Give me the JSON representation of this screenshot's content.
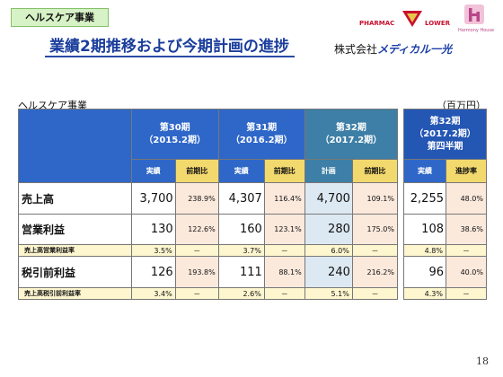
{
  "header": {
    "tag": "ヘルスケア事業",
    "title": "業績2期推移および今期計画の進捗"
  },
  "logos": {
    "pharmac": "PHARMAC",
    "lower": "LOWER",
    "harmony": "Harmony House",
    "company_prefix": "株式会社",
    "company_brand": "メディカル一光"
  },
  "section_label": "ヘルスケア事業",
  "unit_label": "（百万円）",
  "page_number": "18",
  "periods": [
    {
      "name": "第30期",
      "date": "（2015.2期）",
      "col1": "実績",
      "col2": "前期比"
    },
    {
      "name": "第31期",
      "date": "（2016.2期）",
      "col1": "実績",
      "col2": "前期比"
    },
    {
      "name": "第32期",
      "date": "（2017.2期）",
      "col1": "計画",
      "col2": "前期比"
    }
  ],
  "quarter": {
    "name": "第32期",
    "date": "（2017.2期）",
    "sub": "第四半期",
    "col1": "実績",
    "col2": "進捗率"
  },
  "rows": {
    "sales": {
      "label": "売上高",
      "v30": "3,700",
      "r30": "238.9%",
      "v31": "4,307",
      "r31": "116.4%",
      "v32": "4,700",
      "r32": "109.1%",
      "vq": "2,255",
      "rq": "48.0%"
    },
    "op": {
      "label": "営業利益",
      "v30": "130",
      "r30": "122.6%",
      "v31": "160",
      "r31": "123.1%",
      "v32": "280",
      "r32": "175.0%",
      "vq": "108",
      "rq": "38.6%"
    },
    "op_ratio": {
      "label": "売上高営業利益率",
      "v30": "3.5%",
      "d30": "－",
      "v31": "3.7%",
      "d31": "－",
      "v32": "6.0%",
      "d32": "－",
      "vq": "4.8%",
      "dq": "－"
    },
    "pretax": {
      "label": "税引前利益",
      "v30": "126",
      "r30": "193.8%",
      "v31": "111",
      "r31": "88.1%",
      "v32": "240",
      "r32": "216.2%",
      "vq": "96",
      "rq": "40.0%"
    },
    "pretax_ratio": {
      "label": "売上高税引前利益率",
      "v30": "3.4%",
      "d30": "－",
      "v31": "2.6%",
      "d31": "－",
      "v32": "5.1%",
      "d32": "－",
      "vq": "4.3%",
      "dq": "－"
    }
  }
}
